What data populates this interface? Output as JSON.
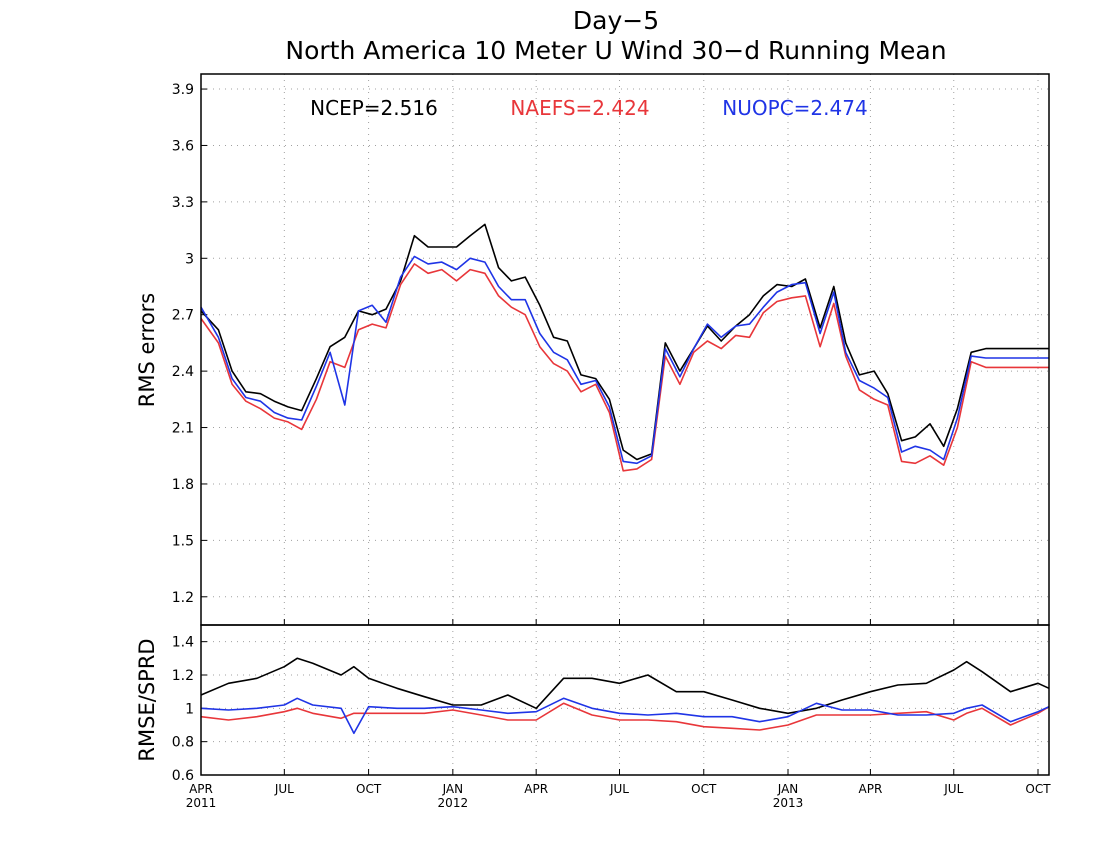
{
  "title_line1": "Day−5",
  "title_line2": "North America 10 Meter U Wind 30−d Running Mean",
  "colors": {
    "ncep": "#000000",
    "naefs": "#e8363a",
    "nuopc": "#1f34e6",
    "grid": "#a0a0a0"
  },
  "chart_data": [
    {
      "type": "line",
      "ylabel": "RMS errors",
      "ylim": [
        1.05,
        3.98
      ],
      "yticks": [
        "1.2",
        "1.5",
        "1.8",
        "2.1",
        "2.4",
        "2.7",
        "3",
        "3.3",
        "3.6",
        "3.9"
      ],
      "grid": true,
      "legend": [
        {
          "name": "NCEP",
          "text": "NCEP=2.516"
        },
        {
          "name": "NAEFS",
          "text": "NAEFS=2.424"
        },
        {
          "name": "NUOPC",
          "text": "NUOPC=2.474"
        }
      ],
      "x": [
        "2011-04-01",
        "2011-04-20",
        "2011-05-05",
        "2011-05-20",
        "2011-06-05",
        "2011-06-20",
        "2011-07-05",
        "2011-07-20",
        "2011-08-05",
        "2011-08-20",
        "2011-09-05",
        "2011-09-20",
        "2011-10-05",
        "2011-10-20",
        "2011-11-05",
        "2011-11-20",
        "2011-12-05",
        "2011-12-20",
        "2012-01-05",
        "2012-01-20",
        "2012-02-05",
        "2012-02-20",
        "2012-03-05",
        "2012-03-20",
        "2012-04-05",
        "2012-04-20",
        "2012-05-05",
        "2012-05-20",
        "2012-06-05",
        "2012-06-20",
        "2012-07-05",
        "2012-07-20",
        "2012-08-05",
        "2012-08-20",
        "2012-09-05",
        "2012-09-20",
        "2012-10-05",
        "2012-10-20",
        "2012-11-05",
        "2012-11-20",
        "2012-12-05",
        "2012-12-20",
        "2013-01-05",
        "2013-01-20",
        "2013-02-05",
        "2013-02-20",
        "2013-03-05",
        "2013-03-20",
        "2013-04-05",
        "2013-04-20",
        "2013-05-05",
        "2013-05-20",
        "2013-06-05",
        "2013-06-20",
        "2013-07-05",
        "2013-07-20",
        "2013-08-05",
        "2013-08-20",
        "2013-09-05",
        "2013-09-20",
        "2013-10-05",
        "2013-10-13"
      ],
      "series": [
        {
          "name": "NCEP",
          "values": [
            2.72,
            2.62,
            2.4,
            2.29,
            2.28,
            2.24,
            2.21,
            2.19,
            2.36,
            2.53,
            2.58,
            2.72,
            2.7,
            2.73,
            2.88,
            3.12,
            3.06,
            3.06,
            3.06,
            3.12,
            3.18,
            2.95,
            2.88,
            2.9,
            2.75,
            2.58,
            2.56,
            2.38,
            2.36,
            2.25,
            1.98,
            1.93,
            1.96,
            2.55,
            2.4,
            2.52,
            2.64,
            2.56,
            2.64,
            2.7,
            2.8,
            2.86,
            2.85,
            2.89,
            2.63,
            2.85,
            2.55,
            2.38,
            2.4,
            2.28,
            2.03,
            2.05,
            2.12,
            2.0,
            2.2,
            2.5,
            2.52,
            2.52,
            2.52,
            2.52,
            2.52,
            2.52
          ]
        },
        {
          "name": "NAEFS",
          "values": [
            2.68,
            2.55,
            2.33,
            2.24,
            2.2,
            2.15,
            2.13,
            2.09,
            2.25,
            2.45,
            2.42,
            2.62,
            2.65,
            2.63,
            2.86,
            2.97,
            2.92,
            2.94,
            2.88,
            2.94,
            2.92,
            2.8,
            2.74,
            2.7,
            2.53,
            2.44,
            2.4,
            2.29,
            2.33,
            2.18,
            1.87,
            1.88,
            1.93,
            2.48,
            2.33,
            2.5,
            2.56,
            2.52,
            2.59,
            2.58,
            2.71,
            2.77,
            2.79,
            2.8,
            2.53,
            2.76,
            2.48,
            2.3,
            2.25,
            2.22,
            1.92,
            1.91,
            1.95,
            1.9,
            2.1,
            2.45,
            2.42,
            2.42,
            2.42,
            2.42,
            2.42,
            2.42
          ]
        },
        {
          "name": "NUOPC",
          "values": [
            2.74,
            2.58,
            2.36,
            2.26,
            2.24,
            2.18,
            2.15,
            2.14,
            2.32,
            2.5,
            2.22,
            2.72,
            2.75,
            2.66,
            2.9,
            3.01,
            2.97,
            2.98,
            2.94,
            3.0,
            2.98,
            2.85,
            2.78,
            2.78,
            2.6,
            2.5,
            2.46,
            2.33,
            2.35,
            2.21,
            1.92,
            1.91,
            1.95,
            2.52,
            2.37,
            2.52,
            2.65,
            2.58,
            2.64,
            2.65,
            2.74,
            2.82,
            2.86,
            2.87,
            2.6,
            2.82,
            2.5,
            2.35,
            2.31,
            2.26,
            1.97,
            2.0,
            1.98,
            1.93,
            2.15,
            2.48,
            2.47,
            2.47,
            2.47,
            2.47,
            2.47,
            2.47
          ]
        }
      ]
    },
    {
      "type": "line",
      "ylabel": "RMSE/SPRD",
      "ylim": [
        0.6,
        1.5
      ],
      "yticks": [
        "0.6",
        "0.8",
        "1",
        "1.2",
        "1.4"
      ],
      "grid": true,
      "x": [
        "2011-04-01",
        "2011-05-01",
        "2011-06-01",
        "2011-07-01",
        "2011-07-15",
        "2011-08-01",
        "2011-09-01",
        "2011-09-15",
        "2011-10-01",
        "2011-11-01",
        "2011-12-01",
        "2012-01-01",
        "2012-02-01",
        "2012-03-01",
        "2012-04-01",
        "2012-05-01",
        "2012-06-01",
        "2012-07-01",
        "2012-08-01",
        "2012-09-01",
        "2012-10-01",
        "2012-11-01",
        "2012-12-01",
        "2013-01-01",
        "2013-02-01",
        "2013-03-01",
        "2013-04-01",
        "2013-05-01",
        "2013-06-01",
        "2013-07-01",
        "2013-07-15",
        "2013-08-01",
        "2013-09-01",
        "2013-10-01",
        "2013-10-13"
      ],
      "series": [
        {
          "name": "NCEP",
          "values": [
            1.08,
            1.15,
            1.18,
            1.25,
            1.3,
            1.27,
            1.2,
            1.25,
            1.18,
            1.12,
            1.07,
            1.02,
            1.02,
            1.08,
            1.0,
            1.18,
            1.18,
            1.15,
            1.2,
            1.1,
            1.1,
            1.05,
            1.0,
            0.97,
            1.0,
            1.05,
            1.1,
            1.14,
            1.15,
            1.23,
            1.28,
            1.22,
            1.1,
            1.15,
            1.12
          ]
        },
        {
          "name": "NAEFS",
          "values": [
            0.95,
            0.93,
            0.95,
            0.98,
            1.0,
            0.97,
            0.94,
            0.97,
            0.97,
            0.97,
            0.97,
            0.99,
            0.96,
            0.93,
            0.93,
            1.03,
            0.96,
            0.93,
            0.93,
            0.92,
            0.89,
            0.88,
            0.87,
            0.9,
            0.96,
            0.96,
            0.96,
            0.97,
            0.98,
            0.93,
            0.97,
            1.0,
            0.9,
            0.97,
            1.01
          ]
        },
        {
          "name": "NUOPC",
          "values": [
            1.0,
            0.99,
            1.0,
            1.02,
            1.06,
            1.02,
            1.0,
            0.85,
            1.01,
            1.0,
            1.0,
            1.01,
            0.99,
            0.97,
            0.98,
            1.06,
            1.0,
            0.97,
            0.96,
            0.97,
            0.95,
            0.95,
            0.92,
            0.95,
            1.03,
            0.99,
            0.99,
            0.96,
            0.96,
            0.97,
            1.0,
            1.02,
            0.92,
            0.98,
            1.01
          ]
        }
      ]
    }
  ],
  "x_axis": {
    "ticks": [
      {
        "date": "2011-04-01",
        "label": "APR",
        "year": "2011"
      },
      {
        "date": "2011-07-01",
        "label": "JUL",
        "year": ""
      },
      {
        "date": "2011-10-01",
        "label": "OCT",
        "year": ""
      },
      {
        "date": "2012-01-01",
        "label": "JAN",
        "year": "2012"
      },
      {
        "date": "2012-04-01",
        "label": "APR",
        "year": ""
      },
      {
        "date": "2012-07-01",
        "label": "JUL",
        "year": ""
      },
      {
        "date": "2012-10-01",
        "label": "OCT",
        "year": ""
      },
      {
        "date": "2013-01-01",
        "label": "JAN",
        "year": "2013"
      },
      {
        "date": "2013-04-01",
        "label": "APR",
        "year": ""
      },
      {
        "date": "2013-07-01",
        "label": "JUL",
        "year": ""
      },
      {
        "date": "2013-10-01",
        "label": "OCT",
        "year": ""
      }
    ],
    "range": [
      "2011-04-01",
      "2013-10-13"
    ]
  }
}
